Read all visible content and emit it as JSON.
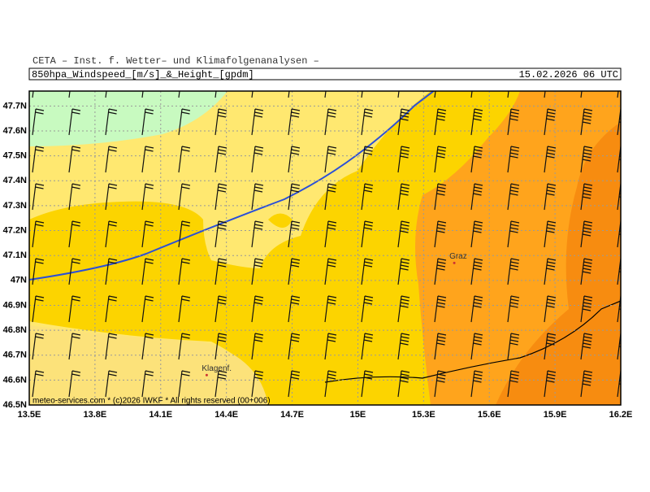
{
  "header": {
    "line1": "CETA – Inst. f. Wetter– und Klimafolgenanalysen –",
    "title": "850hpa_Windspeed_[m/s]_&_Height_[gpdm]",
    "date": "15.02.2026 06 UTC"
  },
  "map": {
    "lonlim": [
      13.5,
      16.2
    ],
    "latlim": [
      46.5,
      47.76
    ],
    "xticks": [
      {
        "value": 13.5,
        "label": "13.5E"
      },
      {
        "value": 13.8,
        "label": "13.8E"
      },
      {
        "value": 14.1,
        "label": "14.1E"
      },
      {
        "value": 14.4,
        "label": "14.4E"
      },
      {
        "value": 14.7,
        "label": "14.7E"
      },
      {
        "value": 15,
        "label": "15E"
      },
      {
        "value": 15.3,
        "label": "15.3E"
      },
      {
        "value": 15.6,
        "label": "15.6E"
      },
      {
        "value": 15.9,
        "label": "15.9E"
      },
      {
        "value": 16.2,
        "label": "16.2E"
      }
    ],
    "yticks": [
      {
        "value": 46.5,
        "label": "46.5N"
      },
      {
        "value": 46.6,
        "label": "46.6N"
      },
      {
        "value": 46.7,
        "label": "46.7N"
      },
      {
        "value": 46.8,
        "label": "46.8N"
      },
      {
        "value": 46.9,
        "label": "46.9N"
      },
      {
        "value": 47,
        "label": "47N"
      },
      {
        "value": 47.1,
        "label": "47.1N"
      },
      {
        "value": 47.2,
        "label": "47.2N"
      },
      {
        "value": 47.3,
        "label": "47.3N"
      },
      {
        "value": 47.4,
        "label": "47.4N"
      },
      {
        "value": 47.5,
        "label": "47.5N"
      },
      {
        "value": 47.6,
        "label": "47.6N"
      },
      {
        "value": 47.7,
        "label": "47.7N"
      }
    ],
    "places": [
      {
        "name": "Graz",
        "lon": 15.44,
        "lat": 47.07
      },
      {
        "name": "Klagenf.",
        "lon": 14.31,
        "lat": 46.62
      }
    ],
    "footer": "meteo-services.com * (c)2026 IWKF * All rights reserved (00+006)"
  }
}
